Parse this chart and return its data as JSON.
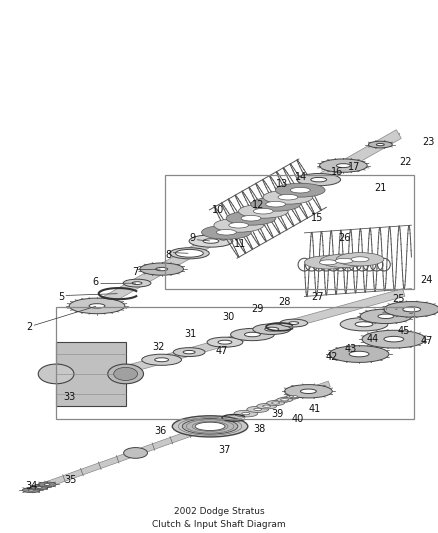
{
  "title": "2002 Dodge Stratus\nClutch & Input Shaft Diagram",
  "bg_color": "#ffffff",
  "line_color": "#444444",
  "label_color": "#111111",
  "label_fontsize": 7.0,
  "fig_width": 4.39,
  "fig_height": 5.33,
  "dpi": 100
}
